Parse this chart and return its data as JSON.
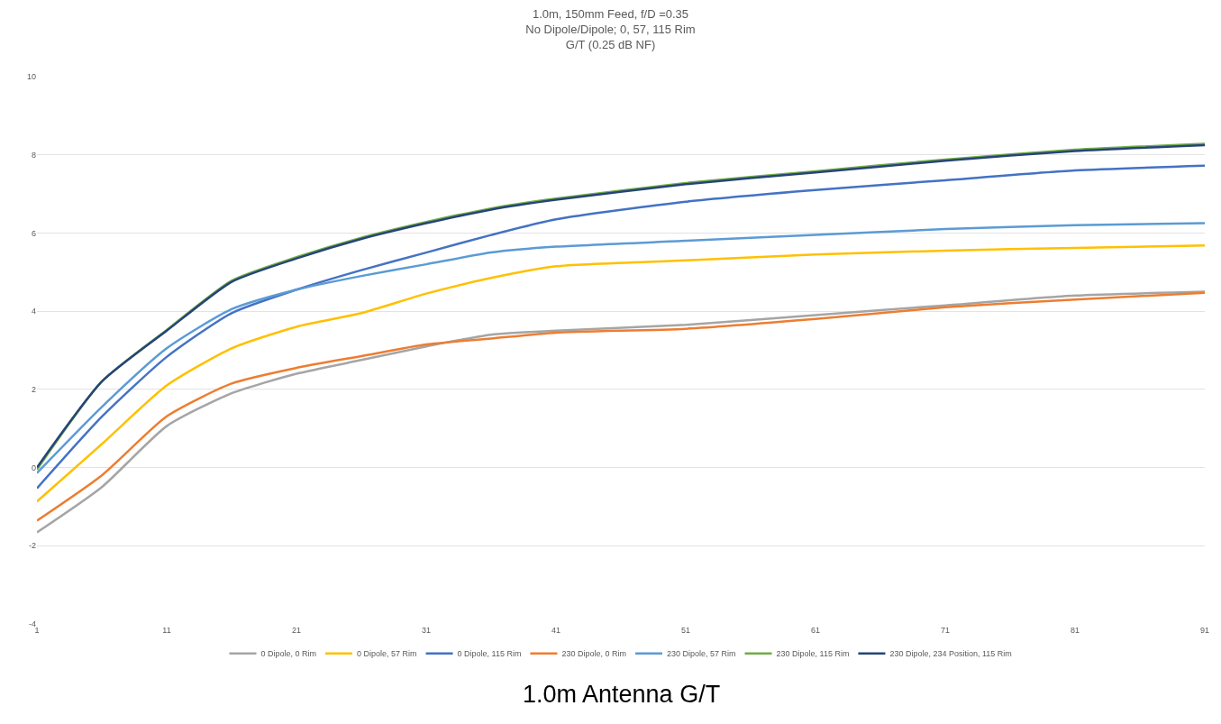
{
  "chart_data": {
    "type": "line",
    "title": "1.0m, 150mm Feed, f/D =0.35\nNo Dipole/Dipole; 0, 57, 115 Rim\nG/T (0.25 dB NF)",
    "annotations": [
      "1.0m Antenna G/T"
    ],
    "x": [
      1,
      6,
      11,
      16,
      21,
      26,
      31,
      36,
      41,
      51,
      61,
      71,
      81,
      91
    ],
    "xlim": [
      1,
      91
    ],
    "xticks": [
      1,
      11,
      21,
      31,
      41,
      51,
      61,
      71,
      81,
      91
    ],
    "ylim": [
      -4,
      10
    ],
    "yticks": [
      -4,
      -2,
      0,
      2,
      4,
      6,
      8,
      10
    ],
    "grid": "y",
    "legend": "bottom",
    "marker": "none",
    "line_style": "solid",
    "series": [
      {
        "name": "0 Dipole, 0 Rim",
        "color": "#a5a5a5",
        "values": [
          -1.66,
          -0.5,
          1.06,
          1.9,
          2.4,
          2.75,
          3.1,
          3.4,
          3.5,
          3.65,
          3.9,
          4.15,
          4.4,
          4.5
        ]
      },
      {
        "name": "0 Dipole, 57 Rim",
        "color": "#ffc000",
        "values": [
          -0.87,
          0.6,
          2.1,
          3.05,
          3.6,
          3.95,
          4.45,
          4.85,
          5.15,
          5.3,
          5.45,
          5.55,
          5.62,
          5.68
        ]
      },
      {
        "name": "0 Dipole, 115 Rim",
        "color": "#4472c4",
        "values": [
          -0.53,
          1.3,
          2.83,
          3.95,
          4.55,
          5.05,
          5.5,
          5.95,
          6.35,
          6.8,
          7.1,
          7.35,
          7.6,
          7.72
        ]
      },
      {
        "name": "230 Dipole, 0 Rim",
        "color": "#ed7d31",
        "values": [
          -1.36,
          -0.2,
          1.31,
          2.15,
          2.55,
          2.85,
          3.15,
          3.3,
          3.45,
          3.55,
          3.8,
          4.1,
          4.3,
          4.47
        ]
      },
      {
        "name": "230 Dipole, 57 Rim",
        "color": "#5b9bd5",
        "values": [
          -0.14,
          1.55,
          3.05,
          4.05,
          4.55,
          4.9,
          5.2,
          5.5,
          5.65,
          5.8,
          5.95,
          6.1,
          6.2,
          6.25
        ]
      },
      {
        "name": "230 Dipole, 115 Rim",
        "color": "#70ad47",
        "values": [
          -0.05,
          2.2,
          3.52,
          4.78,
          5.38,
          5.88,
          6.28,
          6.63,
          6.88,
          7.28,
          7.58,
          7.88,
          8.13,
          8.28
        ]
      },
      {
        "name": "230 Dipole, 234 Position, 115 Rim",
        "color": "#264478",
        "values": [
          0.0,
          2.2,
          3.5,
          4.75,
          5.35,
          5.85,
          6.25,
          6.6,
          6.85,
          7.25,
          7.55,
          7.85,
          8.1,
          8.25
        ]
      }
    ]
  }
}
